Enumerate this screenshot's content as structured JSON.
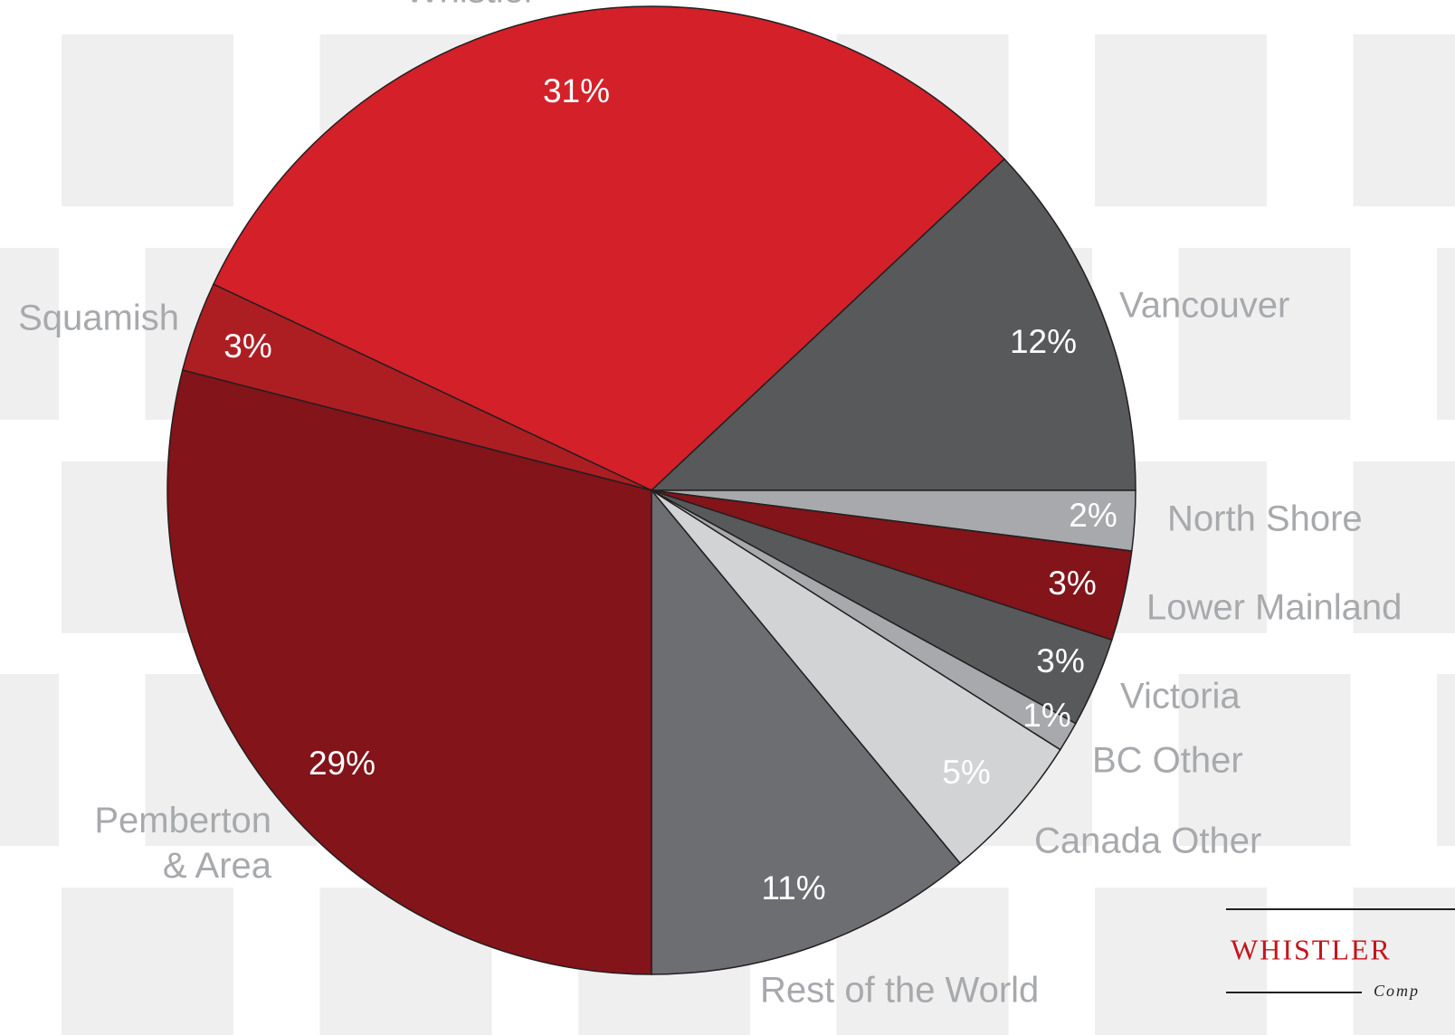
{
  "chart_data": {
    "type": "pie",
    "categories": [
      "Whistler",
      "Vancouver",
      "North Shore",
      "Lower Mainland",
      "Victoria",
      "BC Other",
      "Canada Other",
      "Rest of the World",
      "Pemberton & Area",
      "Squamish"
    ],
    "values": [
      31,
      12,
      2,
      3,
      3,
      1,
      5,
      11,
      29,
      3
    ],
    "value_labels": [
      "31%",
      "12%",
      "2%",
      "3%",
      "3%",
      "1%",
      "5%",
      "11%",
      "29%",
      "3%"
    ],
    "colors": [
      "#d42029",
      "#58595b",
      "#a7a9ac",
      "#82141a",
      "#58595b",
      "#a7a9ac",
      "#d1d3d4",
      "#6d6e71",
      "#82141a",
      "#ad1e23"
    ]
  },
  "logo": {
    "name": "WHISTLER",
    "tagline": "Comp"
  }
}
